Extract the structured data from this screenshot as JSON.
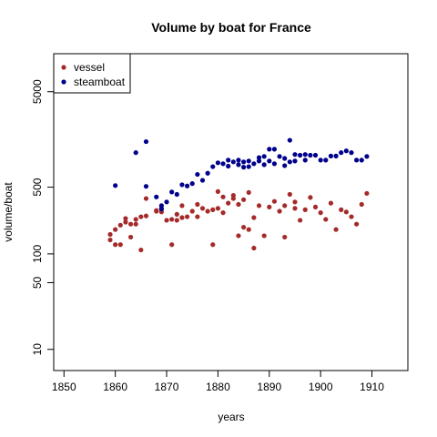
{
  "chart_data": {
    "type": "scatter",
    "title": "Volume by boat for France",
    "xlabel": "years",
    "ylabel": "volume/boat",
    "xlim": [
      1848,
      1917
    ],
    "ylim": [
      6,
      12500
    ],
    "y_scale": "log",
    "x_ticks": [
      1850,
      1860,
      1870,
      1880,
      1890,
      1900,
      1910
    ],
    "y_ticks": [
      10,
      50,
      100,
      500,
      5000
    ],
    "legend_position": "top-left",
    "grid": false,
    "series": [
      {
        "name": "vessel",
        "color": "#a52a2a",
        "points": [
          [
            1859,
            160
          ],
          [
            1859,
            140
          ],
          [
            1860,
            180
          ],
          [
            1860,
            125
          ],
          [
            1861,
            200
          ],
          [
            1861,
            125
          ],
          [
            1862,
            215
          ],
          [
            1862,
            235
          ],
          [
            1863,
            205
          ],
          [
            1863,
            150
          ],
          [
            1864,
            205
          ],
          [
            1864,
            230
          ],
          [
            1865,
            245
          ],
          [
            1865,
            110
          ],
          [
            1866,
            250
          ],
          [
            1866,
            380
          ],
          [
            1868,
            280
          ],
          [
            1868,
            285
          ],
          [
            1869,
            300
          ],
          [
            1869,
            275
          ],
          [
            1870,
            225
          ],
          [
            1871,
            230
          ],
          [
            1871,
            125
          ],
          [
            1872,
            225
          ],
          [
            1872,
            260
          ],
          [
            1873,
            240
          ],
          [
            1873,
            320
          ],
          [
            1874,
            245
          ],
          [
            1875,
            280
          ],
          [
            1876,
            245
          ],
          [
            1876,
            330
          ],
          [
            1877,
            300
          ],
          [
            1878,
            280
          ],
          [
            1879,
            290
          ],
          [
            1879,
            125
          ],
          [
            1880,
            300
          ],
          [
            1880,
            450
          ],
          [
            1881,
            395
          ],
          [
            1881,
            270
          ],
          [
            1882,
            340
          ],
          [
            1883,
            380
          ],
          [
            1883,
            410
          ],
          [
            1884,
            155
          ],
          [
            1884,
            330
          ],
          [
            1885,
            370
          ],
          [
            1885,
            190
          ],
          [
            1886,
            440
          ],
          [
            1886,
            180
          ],
          [
            1887,
            240
          ],
          [
            1887,
            115
          ],
          [
            1888,
            320
          ],
          [
            1889,
            155
          ],
          [
            1890,
            310
          ],
          [
            1891,
            355
          ],
          [
            1892,
            280
          ],
          [
            1893,
            320
          ],
          [
            1893,
            150
          ],
          [
            1894,
            420
          ],
          [
            1895,
            300
          ],
          [
            1895,
            350
          ],
          [
            1896,
            225
          ],
          [
            1897,
            290
          ],
          [
            1898,
            390
          ],
          [
            1899,
            310
          ],
          [
            1900,
            270
          ],
          [
            1901,
            230
          ],
          [
            1902,
            340
          ],
          [
            1903,
            180
          ],
          [
            1904,
            290
          ],
          [
            1905,
            275
          ],
          [
            1906,
            245
          ],
          [
            1907,
            205
          ],
          [
            1908,
            330
          ],
          [
            1909,
            430
          ]
        ]
      },
      {
        "name": "steamboat",
        "color": "#00008b",
        "points": [
          [
            1860,
            520
          ],
          [
            1864,
            1150
          ],
          [
            1866,
            1500
          ],
          [
            1866,
            510
          ],
          [
            1868,
            395
          ],
          [
            1869,
            320
          ],
          [
            1869,
            295
          ],
          [
            1870,
            350
          ],
          [
            1871,
            445
          ],
          [
            1872,
            420
          ],
          [
            1873,
            530
          ],
          [
            1874,
            515
          ],
          [
            1875,
            545
          ],
          [
            1876,
            680
          ],
          [
            1877,
            590
          ],
          [
            1878,
            700
          ],
          [
            1879,
            820
          ],
          [
            1880,
            900
          ],
          [
            1881,
            880
          ],
          [
            1882,
            830
          ],
          [
            1882,
            960
          ],
          [
            1883,
            920
          ],
          [
            1884,
            860
          ],
          [
            1884,
            960
          ],
          [
            1885,
            810
          ],
          [
            1885,
            920
          ],
          [
            1886,
            940
          ],
          [
            1886,
            820
          ],
          [
            1887,
            880
          ],
          [
            1888,
            1020
          ],
          [
            1888,
            940
          ],
          [
            1889,
            860
          ],
          [
            1889,
            1050
          ],
          [
            1890,
            1250
          ],
          [
            1890,
            940
          ],
          [
            1891,
            880
          ],
          [
            1891,
            1250
          ],
          [
            1892,
            1050
          ],
          [
            1893,
            1000
          ],
          [
            1893,
            840
          ],
          [
            1894,
            1550
          ],
          [
            1894,
            920
          ],
          [
            1895,
            1100
          ],
          [
            1895,
            940
          ],
          [
            1896,
            1080
          ],
          [
            1897,
            1100
          ],
          [
            1897,
            960
          ],
          [
            1898,
            1080
          ],
          [
            1899,
            1080
          ],
          [
            1900,
            960
          ],
          [
            1901,
            960
          ],
          [
            1902,
            1060
          ],
          [
            1903,
            1060
          ],
          [
            1904,
            1150
          ],
          [
            1905,
            1200
          ],
          [
            1906,
            1150
          ],
          [
            1907,
            960
          ],
          [
            1908,
            960
          ],
          [
            1909,
            1050
          ]
        ]
      }
    ]
  }
}
